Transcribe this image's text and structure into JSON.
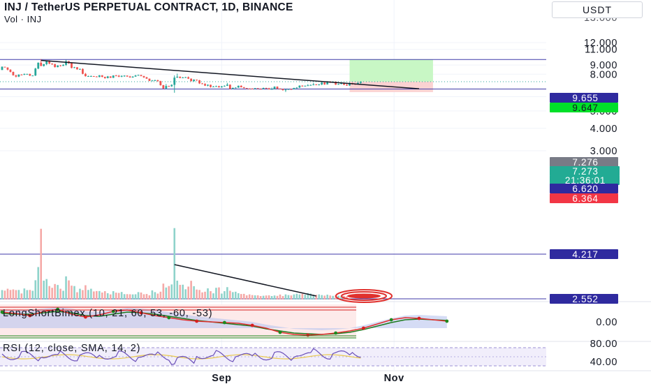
{
  "header": {
    "title": "INJ / TetherUS PERPETUAL CONTRACT, 1D, BINANCE",
    "subtitle": "Vol · INJ",
    "currency_button": "USDT"
  },
  "colors": {
    "bull": "#26a69a",
    "bear": "#ef5350",
    "hline": "#3f3aa8",
    "profit_zone": "#c8f7c5",
    "loss_zone": "#fbd2d2"
  },
  "chart_data": [
    {
      "type": "candlestick",
      "title": "INJ / TetherUS PERPETUAL CONTRACT, 1D, BINANCE",
      "price_axis": {
        "ticks": [
          {
            "label": "12.000",
            "value": 12.0
          },
          {
            "label": "11.000",
            "value": 11.0
          },
          {
            "label": "9.000",
            "value": 9.0
          },
          {
            "label": "8.000",
            "value": 8.0
          },
          {
            "label": "6.000",
            "value": 6.0
          },
          {
            "label": "5.000",
            "value": 5.0
          },
          {
            "label": "4.000",
            "value": 4.0
          },
          {
            "label": "3.000",
            "value": 3.0
          }
        ],
        "scale": "log"
      },
      "time_axis": {
        "labels": [
          {
            "label": "Sep",
            "bar_index": 79
          },
          {
            "label": "Nov",
            "bar_index": 141
          }
        ]
      },
      "price_tags": [
        {
          "label": "9.655",
          "value": 9.655,
          "bg": "#2f2a9f",
          "fg": "#ffffff",
          "line": true
        },
        {
          "label": "9.647",
          "value": 9.647,
          "bg": "#00e029",
          "fg": "#131722",
          "line": false
        },
        {
          "label": "7.276",
          "value": 7.276,
          "bg": "#787b86",
          "fg": "#ffffff",
          "line": false
        },
        {
          "label": "7.273",
          "value": 7.273,
          "bg": "#22ab94",
          "fg": "#ffffff",
          "line": false
        },
        {
          "label": "21:36:01",
          "value": 7.02,
          "bg": "#22ab94",
          "fg": "#ffffff",
          "line": false
        },
        {
          "label": "6.620",
          "value": 6.62,
          "bg": "#2f2a9f",
          "fg": "#ffffff",
          "line": true
        },
        {
          "label": "6.364",
          "value": 6.364,
          "bg": "#f23645",
          "fg": "#ffffff",
          "line": false
        },
        {
          "label": "4.217",
          "value": 4.217,
          "bg": "#2f2a9f",
          "fg": "#ffffff",
          "line": true
        },
        {
          "label": "2.552",
          "value": 2.552,
          "bg": "#2f2a9f",
          "fg": "#ffffff",
          "line": true
        }
      ],
      "position": {
        "entry": 7.276,
        "target": 9.647,
        "stop": 6.364,
        "start_bar": 125,
        "end_bar": 155
      },
      "trendlines": [
        {
          "from_bar": 14,
          "from_price": 9.55,
          "to_bar": 150,
          "to_price": 6.64
        },
        {
          "from_bar": 62,
          "from_price": 4.04,
          "to_bar": 113,
          "to_price": 2.57
        }
      ],
      "candles": [
        [
          8.44,
          8.82,
          8.57,
          8.8
        ],
        [
          8.8,
          8.74,
          8.81,
          8.72
        ],
        [
          8.72,
          8.48,
          8.74,
          8.4
        ],
        [
          8.48,
          8.24,
          8.53,
          8.18
        ],
        [
          8.24,
          7.89,
          8.28,
          7.86
        ],
        [
          7.89,
          7.76,
          7.94,
          7.68
        ],
        [
          7.76,
          7.96,
          7.99,
          7.71
        ],
        [
          7.96,
          7.95,
          8.0,
          7.92
        ],
        [
          7.95,
          8.03,
          8.07,
          7.91
        ],
        [
          8.03,
          8.03,
          8.05,
          7.96
        ],
        [
          8.03,
          7.86,
          8.06,
          7.81
        ],
        [
          7.86,
          7.87,
          7.88,
          7.84
        ],
        [
          7.87,
          8.6,
          8.69,
          7.82
        ],
        [
          8.6,
          9.27,
          9.31,
          8.53
        ],
        [
          9.27,
          8.89,
          9.71,
          8.87
        ],
        [
          8.89,
          9.11,
          9.12,
          8.83
        ],
        [
          9.11,
          9.51,
          9.52,
          8.98
        ],
        [
          9.51,
          9.17,
          9.57,
          9.09
        ],
        [
          9.17,
          9.12,
          9.2,
          9.01
        ],
        [
          9.12,
          8.76,
          9.13,
          8.72
        ],
        [
          8.76,
          8.96,
          8.97,
          8.74
        ],
        [
          8.96,
          8.9,
          9.0,
          8.84
        ],
        [
          8.9,
          9.02,
          9.1,
          8.89
        ],
        [
          9.02,
          9.44,
          9.62,
          8.9
        ],
        [
          9.44,
          9.22,
          9.49,
          9.13
        ],
        [
          9.22,
          8.67,
          9.26,
          8.63
        ],
        [
          8.67,
          8.75,
          8.79,
          8.65
        ],
        [
          8.75,
          8.51,
          8.76,
          8.49
        ],
        [
          8.51,
          8.56,
          8.6,
          8.47
        ],
        [
          8.56,
          8.04,
          8.63,
          7.99
        ],
        [
          8.04,
          7.8,
          8.13,
          7.76
        ],
        [
          7.8,
          7.81,
          7.86,
          7.77
        ],
        [
          7.81,
          7.81,
          7.87,
          7.79
        ],
        [
          7.81,
          7.77,
          7.82,
          7.74
        ],
        [
          7.77,
          7.72,
          7.8,
          7.7
        ],
        [
          7.72,
          7.89,
          7.91,
          7.69
        ],
        [
          7.89,
          7.74,
          7.9,
          7.68
        ],
        [
          7.74,
          7.61,
          7.75,
          7.55
        ],
        [
          7.61,
          7.78,
          7.83,
          7.59
        ],
        [
          7.78,
          7.64,
          7.79,
          7.63
        ],
        [
          7.64,
          7.87,
          7.89,
          7.62
        ],
        [
          7.87,
          7.85,
          7.93,
          7.81
        ],
        [
          7.85,
          7.75,
          7.92,
          7.7
        ],
        [
          7.75,
          7.83,
          7.88,
          7.7
        ],
        [
          7.83,
          7.86,
          7.89,
          7.74
        ],
        [
          7.86,
          7.77,
          7.88,
          7.73
        ],
        [
          7.77,
          7.67,
          7.84,
          7.66
        ],
        [
          7.67,
          7.76,
          7.8,
          7.65
        ],
        [
          7.76,
          7.87,
          7.93,
          7.75
        ],
        [
          7.87,
          7.92,
          7.96,
          7.86
        ],
        [
          7.92,
          7.82,
          7.94,
          7.78
        ],
        [
          7.82,
          7.69,
          7.83,
          7.62
        ],
        [
          7.69,
          7.56,
          7.74,
          7.53
        ],
        [
          7.56,
          7.34,
          7.57,
          7.32
        ],
        [
          7.34,
          7.38,
          7.43,
          7.33
        ],
        [
          7.38,
          7.41,
          7.46,
          7.33
        ],
        [
          7.41,
          7.32,
          7.45,
          7.27
        ],
        [
          7.32,
          6.95,
          7.36,
          6.91
        ],
        [
          6.95,
          6.66,
          6.98,
          6.63
        ],
        [
          6.66,
          6.88,
          7.06,
          6.62
        ],
        [
          6.88,
          6.86,
          6.9,
          6.84
        ],
        [
          6.86,
          6.98,
          7.03,
          6.8
        ],
        [
          6.98,
          7.66,
          7.88,
          6.31
        ],
        [
          7.66,
          7.75,
          8.06,
          7.63
        ],
        [
          7.75,
          7.63,
          7.77,
          7.59
        ],
        [
          7.63,
          7.67,
          7.72,
          7.62
        ],
        [
          7.67,
          7.7,
          7.74,
          7.68
        ],
        [
          7.7,
          7.56,
          7.77,
          7.52
        ],
        [
          7.56,
          7.32,
          7.58,
          7.29
        ],
        [
          7.32,
          7.46,
          7.5,
          7.28
        ],
        [
          7.46,
          7.4,
          7.47,
          7.36
        ],
        [
          7.4,
          7.11,
          7.44,
          7.06
        ],
        [
          7.11,
          7.06,
          7.15,
          7.04
        ],
        [
          7.06,
          6.91,
          7.13,
          6.88
        ],
        [
          6.91,
          6.99,
          7.02,
          6.85
        ],
        [
          6.99,
          6.79,
          7.0,
          6.74
        ],
        [
          6.79,
          6.83,
          6.87,
          6.78
        ],
        [
          6.83,
          6.86,
          6.91,
          6.8
        ],
        [
          6.86,
          6.76,
          6.9,
          6.74
        ],
        [
          6.76,
          6.85,
          6.88,
          6.73
        ],
        [
          6.85,
          6.9,
          6.93,
          6.82
        ],
        [
          6.9,
          7.0,
          7.16,
          6.88
        ],
        [
          7.0,
          6.63,
          7.01,
          6.6
        ],
        [
          6.63,
          6.72,
          6.74,
          6.59
        ],
        [
          6.72,
          6.74,
          6.77,
          6.71
        ],
        [
          6.74,
          6.9,
          6.92,
          6.72
        ],
        [
          6.9,
          6.77,
          6.94,
          6.75
        ],
        [
          6.77,
          6.7,
          6.8,
          6.67
        ],
        [
          6.7,
          6.66,
          6.71,
          6.62
        ],
        [
          6.66,
          6.65,
          6.68,
          6.62
        ],
        [
          6.65,
          6.63,
          6.69,
          6.61
        ],
        [
          6.63,
          6.69,
          6.71,
          6.6
        ],
        [
          6.69,
          6.63,
          6.7,
          6.62
        ],
        [
          6.63,
          6.62,
          6.68,
          6.6
        ],
        [
          6.62,
          6.71,
          6.74,
          6.61
        ],
        [
          6.71,
          6.68,
          6.73,
          6.66
        ],
        [
          6.68,
          6.59,
          6.72,
          6.57
        ],
        [
          6.59,
          6.62,
          6.74,
          6.58
        ],
        [
          6.62,
          6.82,
          6.85,
          6.61
        ],
        [
          6.82,
          6.64,
          6.85,
          6.61
        ],
        [
          6.64,
          6.62,
          6.69,
          6.59
        ],
        [
          6.62,
          6.53,
          6.63,
          6.47
        ],
        [
          6.53,
          6.57,
          6.61,
          6.37
        ],
        [
          6.57,
          6.61,
          6.62,
          6.56
        ],
        [
          6.61,
          6.6,
          6.64,
          6.56
        ],
        [
          6.6,
          6.7,
          6.73,
          6.57
        ],
        [
          6.7,
          6.74,
          6.78,
          6.66
        ],
        [
          6.74,
          6.91,
          6.94,
          6.7
        ],
        [
          6.91,
          6.86,
          6.94,
          6.82
        ],
        [
          6.86,
          6.9,
          6.92,
          6.84
        ],
        [
          6.9,
          6.94,
          7.05,
          6.88
        ],
        [
          6.94,
          6.97,
          7.01,
          6.93
        ],
        [
          6.97,
          7.02,
          7.16,
          6.94
        ],
        [
          7.02,
          6.97,
          7.05,
          6.95
        ],
        [
          6.97,
          7.02,
          7.05,
          6.93
        ],
        [
          7.02,
          7.2,
          7.23,
          6.95
        ],
        [
          7.2,
          7.02,
          7.22,
          6.98
        ],
        [
          7.02,
          7.29,
          7.32,
          7.01
        ],
        [
          7.29,
          7.18,
          7.31,
          7.15
        ],
        [
          7.18,
          7.27,
          7.32,
          7.16
        ],
        [
          7.27,
          7.0,
          7.29,
          6.97
        ],
        [
          7.0,
          7.06,
          7.09,
          6.99
        ],
        [
          7.06,
          7.15,
          7.19,
          7.03
        ],
        [
          7.15,
          6.99,
          7.17,
          6.95
        ],
        [
          6.99,
          6.92,
          7.07,
          6.89
        ],
        [
          6.92,
          7.14,
          7.2,
          6.9
        ],
        [
          7.14,
          7.06,
          7.17,
          7.0
        ],
        [
          7.06,
          7.02,
          7.1,
          6.98
        ],
        [
          7.02,
          7.16,
          7.22,
          7.0
        ],
        [
          7.16,
          7.28,
          7.3,
          7.07
        ]
      ],
      "volumes": [
        0.7,
        0.66,
        0.8,
        0.71,
        0.75,
        0.7,
        0.71,
        0.45,
        0.82,
        0.7,
        0.71,
        0.65,
        1.43,
        2.41,
        5.25,
        1.4,
        1.52,
        1.0,
        0.87,
        1.15,
        1.08,
        0.8,
        0.65,
        1.72,
        1.42,
        1.03,
        1.0,
        0.54,
        0.8,
        0.7,
        1.06,
        0.71,
        0.8,
        0.6,
        0.63,
        0.63,
        0.52,
        0.62,
        0.47,
        0.38,
        0.62,
        0.51,
        0.49,
        0.56,
        0.4,
        0.4,
        0.39,
        0.38,
        0.39,
        0.55,
        0.52,
        0.39,
        0.41,
        0.31,
        0.68,
        0.55,
        0.44,
        0.58,
        1.18,
        0.89,
        1.0,
        1.12,
        5.3,
        1.4,
        1.09,
        1.1,
        0.76,
        0.96,
        1.39,
        0.99,
        0.74,
        0.71,
        0.53,
        0.58,
        0.83,
        0.62,
        0.46,
        0.87,
        0.9,
        0.44,
        0.62,
        0.92,
        0.65,
        0.55,
        0.58,
        0.47,
        0.41,
        0.42,
        0.31,
        0.38,
        0.33,
        0.31,
        0.31,
        0.26,
        0.28,
        0.3,
        0.31,
        0.26,
        0.3,
        0.27,
        0.37,
        0.26,
        0.38,
        0.33,
        0.3,
        0.38,
        0.43,
        0.38,
        0.43,
        0.36,
        0.48,
        0.44,
        0.36,
        0.35,
        0.38,
        0.33,
        0.29,
        0.36,
        0.3,
        0.27,
        0.33,
        0.28,
        0.28,
        0.27,
        0.25
      ]
    },
    {
      "type": "line",
      "title": "LongShortBimex (10, 21, 60, 53, -60, -53)",
      "ticks": [
        {
          "label": "0.00",
          "value": 0
        }
      ]
    },
    {
      "type": "line",
      "title": "RSI (12, close, SMA, 14, 2)",
      "ticks": [
        {
          "label": "80.00",
          "value": 80
        },
        {
          "label": "40.00",
          "value": 40
        }
      ]
    }
  ]
}
